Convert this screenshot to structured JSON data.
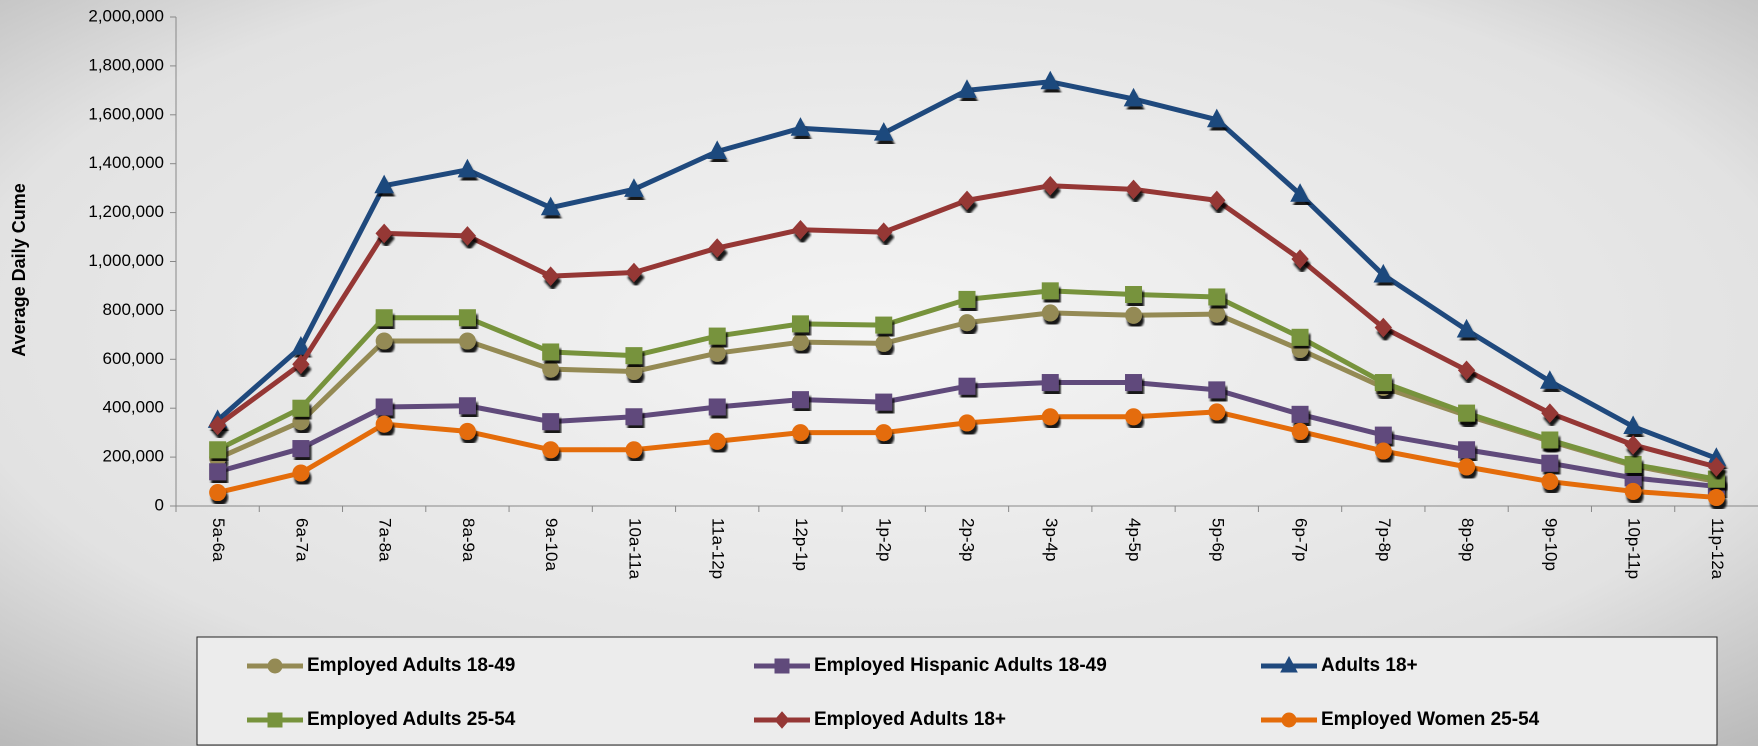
{
  "chart_data": {
    "type": "line",
    "y_label": "Average Daily Cume",
    "categories": [
      "5a-6a",
      "6a-7a",
      "7a-8a",
      "8a-9a",
      "9a-10a",
      "10a-11a",
      "11a-12p",
      "12p-1p",
      "1p-2p",
      "2p-3p",
      "3p-4p",
      "4p-5p",
      "5p-6p",
      "6p-7p",
      "7p-8p",
      "8p-9p",
      "9p-10p",
      "10p-11p",
      "11p-12a"
    ],
    "ylim": [
      0,
      2000000
    ],
    "yticks": [
      0,
      {
        "value": 200000,
        "label": "200,000"
      },
      {
        "value": 400000,
        "label": "400,000"
      },
      {
        "value": 600000,
        "label": "600,000"
      },
      {
        "value": 800000,
        "label": "800,000"
      },
      {
        "value": 1000000,
        "label": "1,000,000"
      },
      {
        "value": 1200000,
        "label": "1,200,000"
      },
      {
        "value": 1400000,
        "label": "1,400,000"
      },
      {
        "value": 1600000,
        "label": "1,600,000"
      },
      {
        "value": 1800000,
        "label": "1,800,000"
      },
      {
        "value": 2000000,
        "label": "2,000,000"
      }
    ],
    "grid": false,
    "legend": "bottom",
    "series": [
      {
        "name": "Employed Adults 18-49",
        "color": "#948A54",
        "marker": "circle",
        "values": [
          195000,
          345000,
          675000,
          675000,
          560000,
          550000,
          625000,
          670000,
          665000,
          750000,
          790000,
          780000,
          785000,
          640000,
          485000,
          370000,
          265000,
          165000,
          100000
        ]
      },
      {
        "name": "Employed Hispanic Adults 18-49",
        "color": "#604A7B",
        "marker": "square",
        "values": [
          140000,
          235000,
          405000,
          410000,
          345000,
          365000,
          405000,
          435000,
          425000,
          490000,
          505000,
          505000,
          475000,
          375000,
          290000,
          230000,
          175000,
          115000,
          80000
        ]
      },
      {
        "name": "Adults 18+",
        "color": "#1F497D",
        "marker": "triangle",
        "values": [
          350000,
          650000,
          1310000,
          1375000,
          1220000,
          1295000,
          1450000,
          1545000,
          1525000,
          1700000,
          1735000,
          1665000,
          1580000,
          1275000,
          945000,
          720000,
          510000,
          325000,
          195000
        ]
      },
      {
        "name": "Employed Adults 25-54",
        "color": "#77933C",
        "marker": "square",
        "values": [
          230000,
          400000,
          770000,
          770000,
          630000,
          615000,
          695000,
          745000,
          740000,
          845000,
          880000,
          865000,
          855000,
          690000,
          505000,
          380000,
          270000,
          170000,
          110000
        ]
      },
      {
        "name": "Employed Adults 18+",
        "color": "#953735",
        "marker": "diamond",
        "values": [
          330000,
          580000,
          1115000,
          1105000,
          940000,
          955000,
          1055000,
          1130000,
          1120000,
          1250000,
          1310000,
          1295000,
          1250000,
          1010000,
          730000,
          555000,
          380000,
          250000,
          160000
        ]
      },
      {
        "name": "Employed Women 25-54",
        "color": "#E46C0A",
        "marker": "circle",
        "values": [
          55000,
          135000,
          335000,
          305000,
          230000,
          230000,
          265000,
          300000,
          300000,
          340000,
          365000,
          365000,
          385000,
          305000,
          225000,
          160000,
          100000,
          60000,
          35000
        ]
      }
    ]
  }
}
